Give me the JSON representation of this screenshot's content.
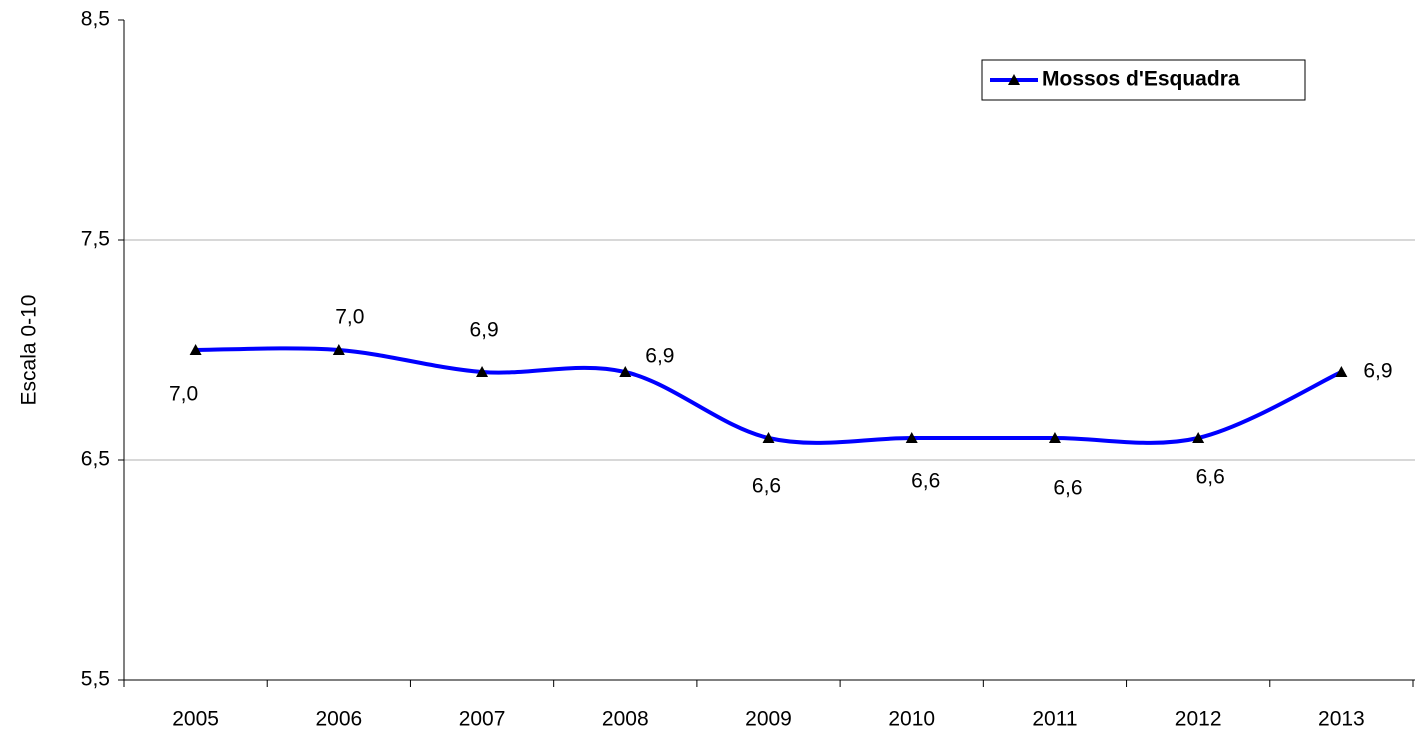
{
  "chart_data": {
    "type": "line",
    "y_label": "Escala 0-10",
    "categories": [
      "2005",
      "2006",
      "2007",
      "2008",
      "2009",
      "2010",
      "2011",
      "2012",
      "2013"
    ],
    "series": [
      {
        "name": "Mossos d'Esquadra",
        "color": "#0000ff",
        "values": [
          7.0,
          7.0,
          6.9,
          6.9,
          6.6,
          6.6,
          6.6,
          6.6,
          6.9
        ],
        "value_labels": [
          "7,0",
          "7,0",
          "6,9",
          "6,9",
          "6,6",
          "6,6",
          "6,6",
          "6,6",
          "6,9"
        ]
      }
    ],
    "ylim": [
      5.5,
      8.5
    ],
    "yticks": [
      {
        "value": 5.5,
        "label": "5,5"
      },
      {
        "value": 6.5,
        "label": "6,5"
      },
      {
        "value": 7.5,
        "label": "7,5"
      },
      {
        "value": 8.5,
        "label": "8,5"
      }
    ],
    "grid": true,
    "legend": "top-right"
  }
}
